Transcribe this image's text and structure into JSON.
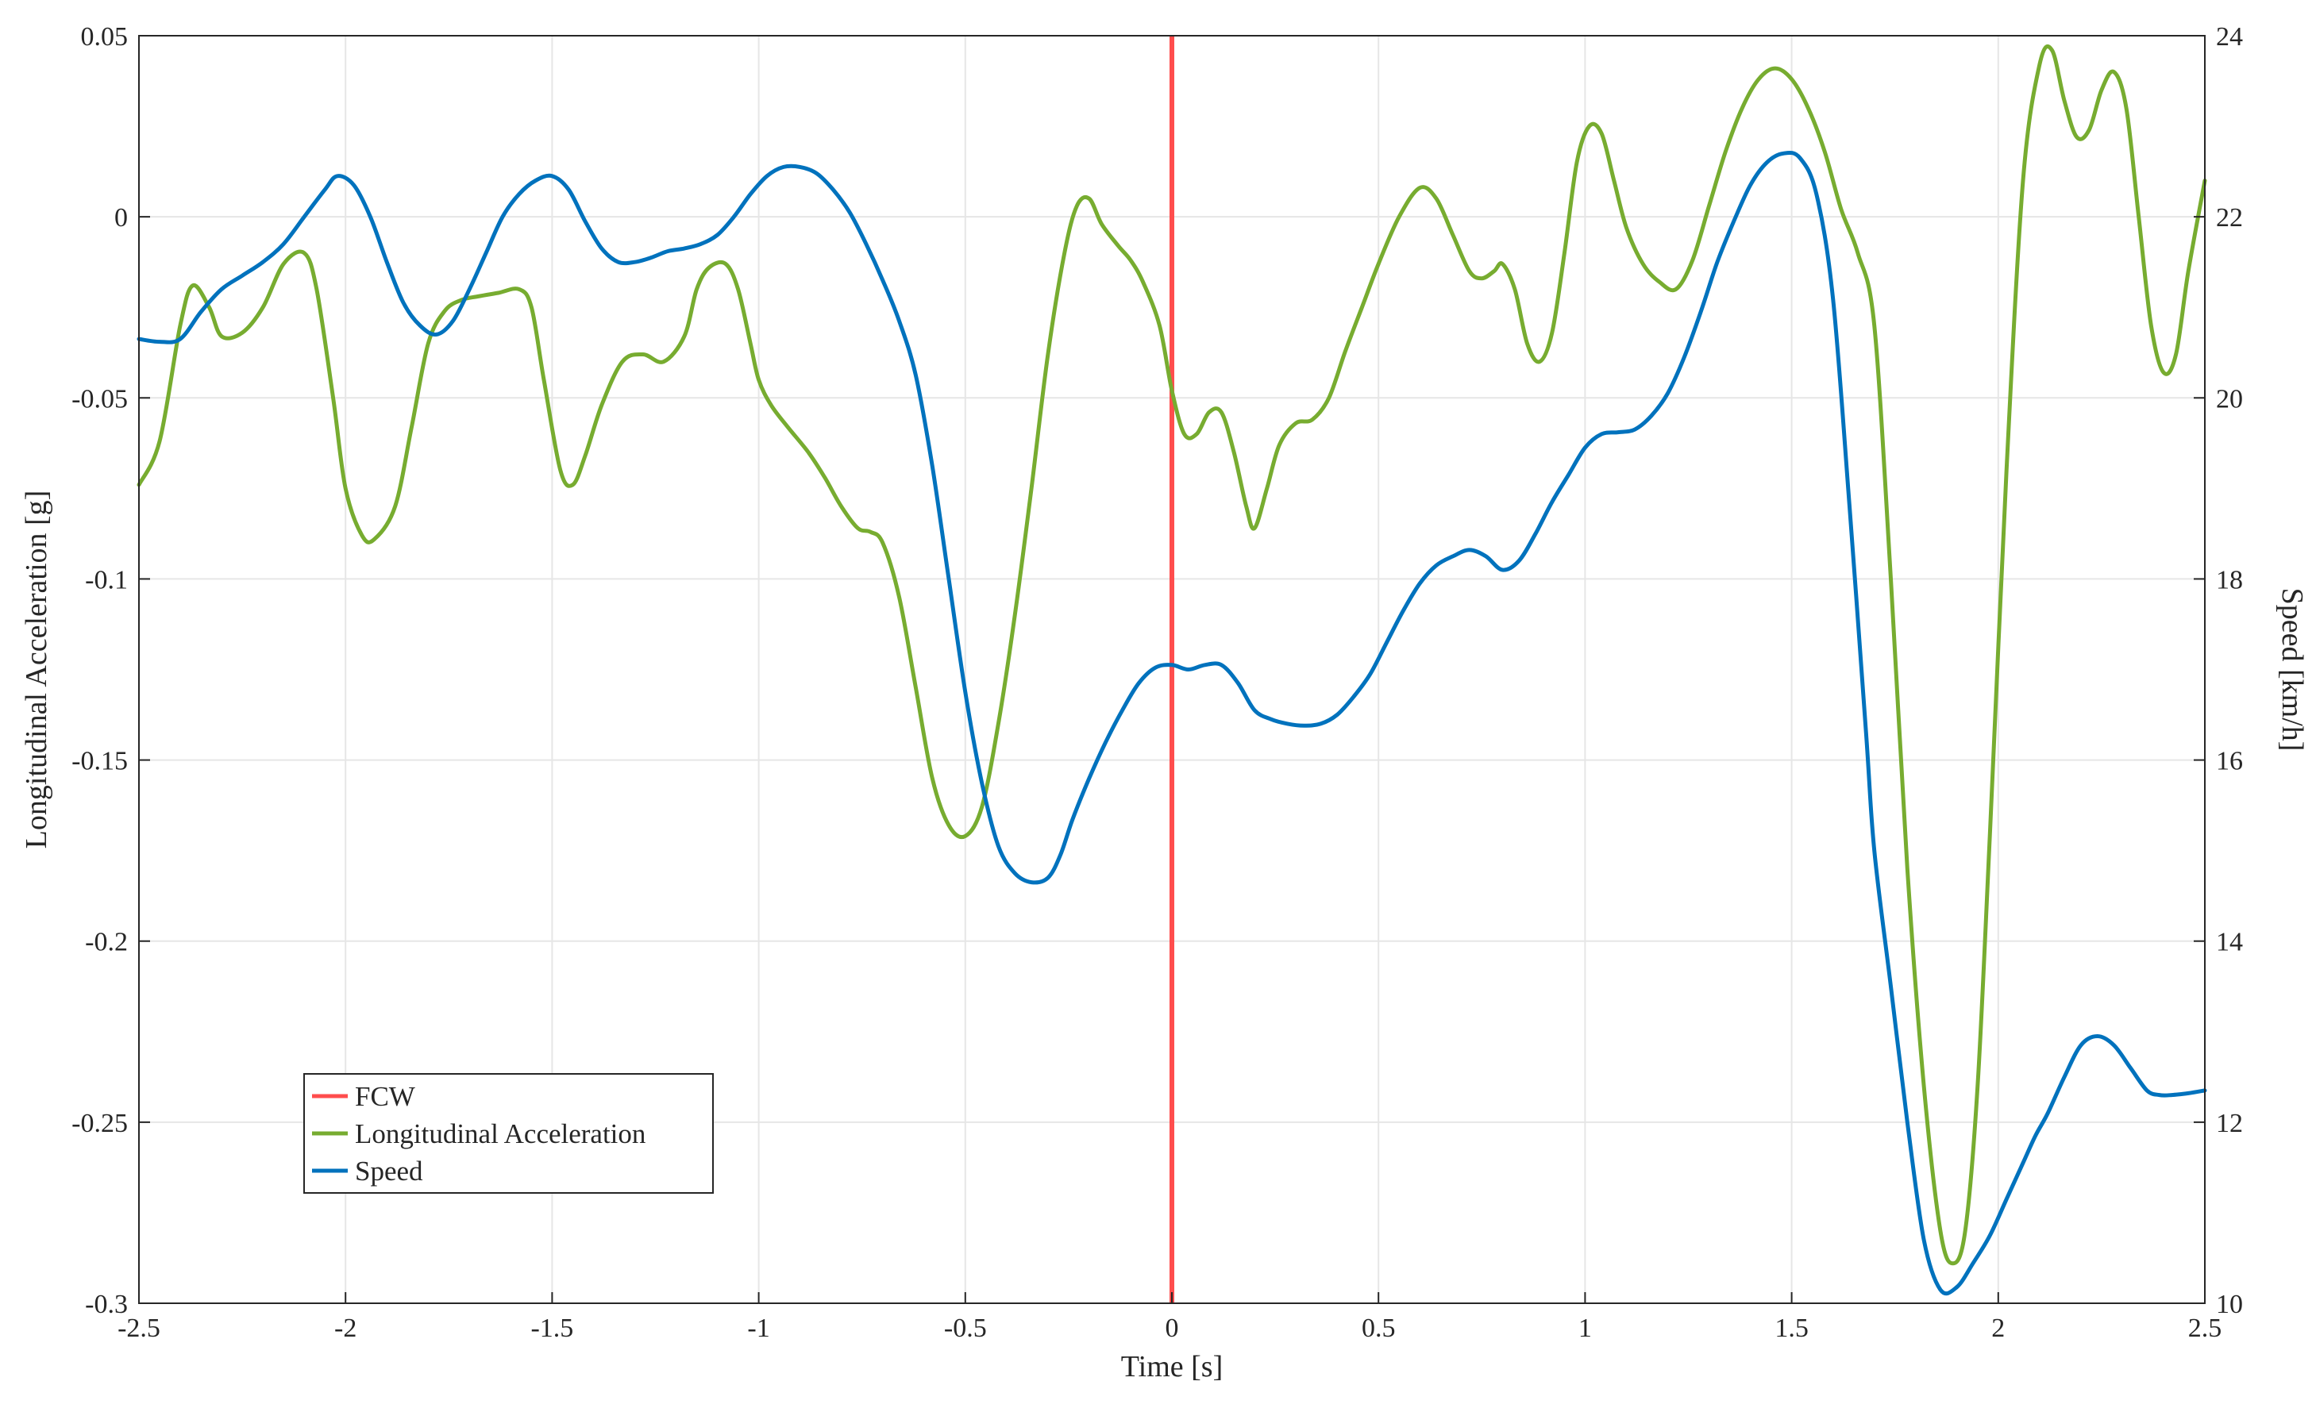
{
  "chart_data": {
    "type": "line",
    "title": "",
    "xlabel": "Time [s]",
    "ylabel_left": "Longitudinal Acceleration [g]",
    "ylabel_right": "Speed [km/h]",
    "xlim": [
      -2.5,
      2.5
    ],
    "ylim_left": [
      -0.3,
      0.05
    ],
    "ylim_right": [
      10,
      24
    ],
    "grid": true,
    "legend_position": "bottom-left",
    "x_ticks": [
      "-2.5",
      "-2",
      "-1.5",
      "-1",
      "-0.5",
      "0",
      "0.5",
      "1",
      "1.5",
      "2",
      "2.5"
    ],
    "y_left_ticks": [
      "0.05",
      "0",
      "-0.05",
      "-0.1",
      "-0.15",
      "-0.2",
      "-0.25",
      "-0.3"
    ],
    "y_right_ticks": [
      "24",
      "22",
      "20",
      "18",
      "16",
      "14",
      "12",
      "10"
    ],
    "events": [
      {
        "name": "FCW",
        "x": 0,
        "color": "#ff4d4d"
      }
    ],
    "series": [
      {
        "name": "Longitudinal Acceleration",
        "axis": "left",
        "color": "#77ac30",
        "x": [
          -2.5,
          -2.45,
          -2.4,
          -2.37,
          -2.33,
          -2.3,
          -2.25,
          -2.2,
          -2.15,
          -2.1,
          -2.07,
          -2.03,
          -2.0,
          -1.96,
          -1.93,
          -1.88,
          -1.84,
          -1.8,
          -1.76,
          -1.72,
          -1.68,
          -1.63,
          -1.58,
          -1.55,
          -1.52,
          -1.48,
          -1.45,
          -1.42,
          -1.38,
          -1.33,
          -1.28,
          -1.23,
          -1.18,
          -1.15,
          -1.12,
          -1.08,
          -1.05,
          -1.02,
          -1.0,
          -0.97,
          -0.93,
          -0.88,
          -0.84,
          -0.8,
          -0.76,
          -0.73,
          -0.7,
          -0.66,
          -0.62,
          -0.58,
          -0.54,
          -0.5,
          -0.46,
          -0.42,
          -0.38,
          -0.34,
          -0.3,
          -0.26,
          -0.23,
          -0.2,
          -0.17,
          -0.13,
          -0.1,
          -0.07,
          -0.03,
          0.0,
          0.03,
          0.06,
          0.09,
          0.12,
          0.15,
          0.18,
          0.2,
          0.23,
          0.26,
          0.3,
          0.34,
          0.38,
          0.42,
          0.46,
          0.5,
          0.55,
          0.6,
          0.64,
          0.68,
          0.72,
          0.75,
          0.78,
          0.8,
          0.83,
          0.86,
          0.89,
          0.92,
          0.95,
          0.98,
          1.01,
          1.04,
          1.07,
          1.1,
          1.14,
          1.18,
          1.22,
          1.26,
          1.3,
          1.34,
          1.38,
          1.42,
          1.46,
          1.5,
          1.54,
          1.58,
          1.62,
          1.66,
          1.7,
          1.74,
          1.78,
          1.82,
          1.86,
          1.89,
          1.92,
          1.95,
          1.98,
          2.02,
          2.06,
          2.1,
          2.13,
          2.16,
          2.19,
          2.22,
          2.25,
          2.28,
          2.31,
          2.34,
          2.37,
          2.4,
          2.43,
          2.46,
          2.5
        ],
        "y": [
          -0.074,
          -0.062,
          -0.03,
          -0.019,
          -0.025,
          -0.033,
          -0.032,
          -0.025,
          -0.013,
          -0.01,
          -0.02,
          -0.05,
          -0.075,
          -0.088,
          -0.089,
          -0.08,
          -0.058,
          -0.035,
          -0.026,
          -0.023,
          -0.022,
          -0.021,
          -0.02,
          -0.025,
          -0.045,
          -0.07,
          -0.074,
          -0.066,
          -0.052,
          -0.04,
          -0.038,
          -0.04,
          -0.033,
          -0.02,
          -0.014,
          -0.013,
          -0.02,
          -0.035,
          -0.045,
          -0.052,
          -0.058,
          -0.065,
          -0.072,
          -0.08,
          -0.086,
          -0.087,
          -0.09,
          -0.105,
          -0.13,
          -0.155,
          -0.168,
          -0.171,
          -0.163,
          -0.14,
          -0.11,
          -0.075,
          -0.038,
          -0.01,
          0.003,
          0.005,
          -0.002,
          -0.008,
          -0.012,
          -0.018,
          -0.03,
          -0.048,
          -0.06,
          -0.06,
          -0.054,
          -0.054,
          -0.065,
          -0.08,
          -0.086,
          -0.075,
          -0.063,
          -0.057,
          -0.056,
          -0.05,
          -0.037,
          -0.025,
          -0.013,
          0.0,
          0.008,
          0.005,
          -0.005,
          -0.015,
          -0.017,
          -0.015,
          -0.013,
          -0.02,
          -0.035,
          -0.04,
          -0.032,
          -0.01,
          0.015,
          0.025,
          0.023,
          0.01,
          -0.003,
          -0.013,
          -0.018,
          -0.02,
          -0.012,
          0.003,
          0.018,
          0.03,
          0.038,
          0.041,
          0.038,
          0.03,
          0.018,
          0.002,
          -0.01,
          -0.03,
          -0.1,
          -0.18,
          -0.24,
          -0.28,
          -0.289,
          -0.28,
          -0.24,
          -0.17,
          -0.07,
          0.01,
          0.042,
          0.046,
          0.032,
          0.022,
          0.024,
          0.035,
          0.04,
          0.03,
          0.0,
          -0.03,
          -0.043,
          -0.038,
          -0.015,
          0.01
        ]
      },
      {
        "name": "Speed",
        "axis": "right",
        "color": "#0072bd",
        "x": [
          -2.5,
          -2.45,
          -2.4,
          -2.35,
          -2.3,
          -2.25,
          -2.2,
          -2.15,
          -2.1,
          -2.05,
          -2.02,
          -1.98,
          -1.94,
          -1.9,
          -1.86,
          -1.82,
          -1.78,
          -1.74,
          -1.7,
          -1.66,
          -1.62,
          -1.58,
          -1.54,
          -1.5,
          -1.46,
          -1.42,
          -1.38,
          -1.34,
          -1.3,
          -1.26,
          -1.22,
          -1.18,
          -1.14,
          -1.1,
          -1.06,
          -1.02,
          -0.98,
          -0.94,
          -0.9,
          -0.86,
          -0.82,
          -0.78,
          -0.74,
          -0.7,
          -0.66,
          -0.62,
          -0.58,
          -0.54,
          -0.5,
          -0.46,
          -0.42,
          -0.38,
          -0.34,
          -0.3,
          -0.27,
          -0.24,
          -0.2,
          -0.16,
          -0.12,
          -0.08,
          -0.04,
          0.0,
          0.04,
          0.08,
          0.12,
          0.16,
          0.2,
          0.24,
          0.28,
          0.32,
          0.36,
          0.4,
          0.44,
          0.48,
          0.52,
          0.56,
          0.6,
          0.64,
          0.68,
          0.72,
          0.76,
          0.8,
          0.84,
          0.88,
          0.92,
          0.96,
          1.0,
          1.04,
          1.08,
          1.12,
          1.16,
          1.2,
          1.24,
          1.28,
          1.32,
          1.36,
          1.4,
          1.44,
          1.48,
          1.52,
          1.56,
          1.6,
          1.64,
          1.68,
          1.7,
          1.74,
          1.78,
          1.82,
          1.86,
          1.9,
          1.94,
          1.98,
          2.02,
          2.06,
          2.09,
          2.12,
          2.16,
          2.2,
          2.24,
          2.28,
          2.32,
          2.36,
          2.39,
          2.42,
          2.46,
          2.5
        ],
        "y": [
          20.65,
          20.62,
          20.65,
          20.95,
          21.2,
          21.35,
          21.5,
          21.7,
          22.0,
          22.3,
          22.45,
          22.35,
          22.0,
          21.5,
          21.05,
          20.8,
          20.7,
          20.85,
          21.2,
          21.6,
          22.0,
          22.25,
          22.4,
          22.45,
          22.3,
          21.95,
          21.65,
          21.5,
          21.5,
          21.55,
          21.62,
          21.65,
          21.7,
          21.8,
          22.0,
          22.25,
          22.45,
          22.55,
          22.55,
          22.48,
          22.3,
          22.05,
          21.7,
          21.3,
          20.85,
          20.25,
          19.25,
          18.0,
          16.75,
          15.75,
          15.05,
          14.75,
          14.65,
          14.7,
          14.95,
          15.35,
          15.8,
          16.2,
          16.55,
          16.85,
          17.02,
          17.05,
          17.0,
          17.05,
          17.05,
          16.85,
          16.55,
          16.45,
          16.4,
          16.38,
          16.4,
          16.5,
          16.7,
          16.95,
          17.3,
          17.65,
          17.95,
          18.15,
          18.25,
          18.32,
          18.25,
          18.1,
          18.2,
          18.5,
          18.85,
          19.15,
          19.45,
          19.6,
          19.62,
          19.65,
          19.8,
          20.05,
          20.45,
          20.95,
          21.5,
          21.95,
          22.35,
          22.6,
          22.7,
          22.65,
          22.25,
          21.1,
          18.8,
          16.3,
          15.0,
          13.5,
          12.0,
          10.7,
          10.15,
          10.18,
          10.45,
          10.75,
          11.15,
          11.55,
          11.85,
          12.1,
          12.5,
          12.85,
          12.95,
          12.85,
          12.6,
          12.35,
          12.3,
          12.3,
          12.32,
          12.35
        ],
        "note_removed": true
      }
    ]
  }
}
